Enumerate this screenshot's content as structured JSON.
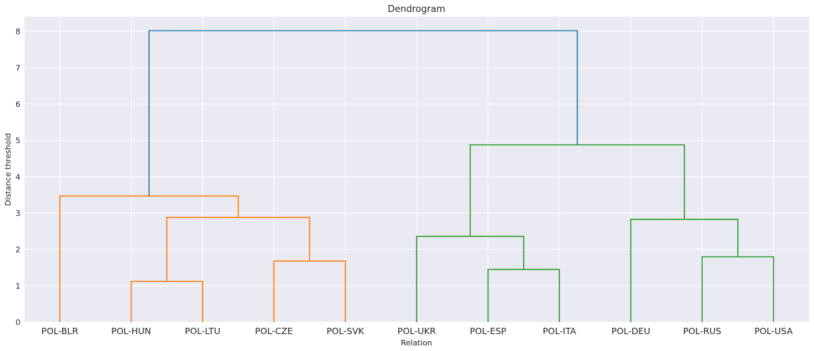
{
  "chart_data": {
    "type": "dendrogram",
    "title": "Dendrogram",
    "xlabel": "Relation",
    "ylabel": "Distance threshold",
    "ylim": [
      0,
      8.4
    ],
    "yticks": [
      0,
      1,
      2,
      3,
      4,
      5,
      6,
      7,
      8
    ],
    "grid": true,
    "leaves": [
      "POL-BLR",
      "POL-HUN",
      "POL-LTU",
      "POL-CZE",
      "POL-SVK",
      "POL-UKR",
      "POL-ESP",
      "POL-ITA",
      "POL-DEU",
      "POL-RUS",
      "POL-USA"
    ],
    "colors": {
      "cluster_1": "#ff7f0e",
      "cluster_2": "#2ca02c",
      "above_threshold": "#1f77b4",
      "plot_bg": "#eaeaf2",
      "grid": "#ffffff"
    },
    "links": [
      {
        "left": "POL-HUN",
        "right": "POL-LTU",
        "height": 1.12,
        "color": "cluster_1"
      },
      {
        "left": "POL-CZE",
        "right": "POL-SVK",
        "height": 1.68,
        "color": "cluster_1"
      },
      {
        "left": "POL-HUN+POL-LTU",
        "right": "POL-CZE+POL-SVK",
        "height": 2.88,
        "color": "cluster_1"
      },
      {
        "left": "POL-BLR",
        "right": "POL-HUN+POL-LTU+POL-CZE+POL-SVK",
        "height": 3.47,
        "color": "cluster_1"
      },
      {
        "left": "POL-ESP",
        "right": "POL-ITA",
        "height": 1.45,
        "color": "cluster_2"
      },
      {
        "left": "POL-UKR",
        "right": "POL-ESP+POL-ITA",
        "height": 2.36,
        "color": "cluster_2"
      },
      {
        "left": "POL-RUS",
        "right": "POL-USA",
        "height": 1.8,
        "color": "cluster_2"
      },
      {
        "left": "POL-DEU",
        "right": "POL-RUS+POL-USA",
        "height": 2.83,
        "color": "cluster_2"
      },
      {
        "left": "POL-UKR+POL-ESP+POL-ITA",
        "right": "POL-DEU+POL-RUS+POL-USA",
        "height": 4.88,
        "color": "cluster_2"
      },
      {
        "left": "POL-BLR+POL-HUN+POL-LTU+POL-CZE+POL-SVK",
        "right": "POL-UKR+POL-ESP+POL-ITA+POL-DEU+POL-RUS+POL-USA",
        "height": 8.02,
        "color": "above_threshold"
      }
    ]
  }
}
